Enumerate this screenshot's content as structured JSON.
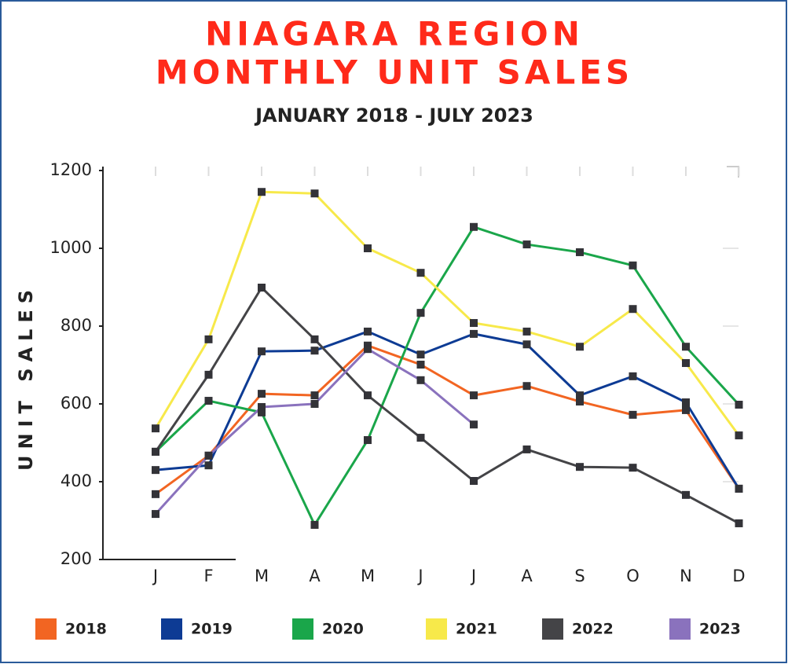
{
  "chart_data": {
    "type": "line",
    "title": [
      "NIAGARA REGION",
      "MONTHLY UNIT SALES"
    ],
    "subtitle": "JANUARY 2018 - JULY 2023",
    "y_label": "UNIT SALES",
    "categories": [
      "J",
      "F",
      "M",
      "A",
      "M",
      "J",
      "J",
      "A",
      "S",
      "O",
      "N",
      "D"
    ],
    "ylim": [
      200,
      1200
    ],
    "yticks": [
      200,
      400,
      600,
      800,
      1000,
      1200
    ],
    "marker_color": "#333338",
    "series": [
      {
        "name": "2018",
        "color": "#f26522",
        "values": [
          368,
          467,
          626,
          622,
          750,
          701,
          622,
          646,
          606,
          572,
          584,
          382
        ]
      },
      {
        "name": "2019",
        "color": "#0d3b94",
        "values": [
          430,
          442,
          735,
          737,
          786,
          727,
          780,
          753,
          622,
          671,
          604,
          382
        ]
      },
      {
        "name": "2020",
        "color": "#1aa64a",
        "values": [
          477,
          608,
          578,
          289,
          507,
          834,
          1055,
          1010,
          990,
          956,
          747,
          598
        ]
      },
      {
        "name": "2021",
        "color": "#f7e94a",
        "values": [
          537,
          766,
          1145,
          1141,
          1000,
          937,
          808,
          786,
          747,
          844,
          705,
          519
        ]
      },
      {
        "name": "2022",
        "color": "#444447",
        "values": [
          477,
          675,
          899,
          766,
          622,
          513,
          402,
          483,
          438,
          436,
          366,
          293
        ]
      },
      {
        "name": "2023",
        "color": "#8a72bd",
        "values": [
          317,
          467,
          592,
          600,
          741,
          661,
          547,
          null,
          null,
          null,
          null,
          null
        ]
      }
    ]
  }
}
